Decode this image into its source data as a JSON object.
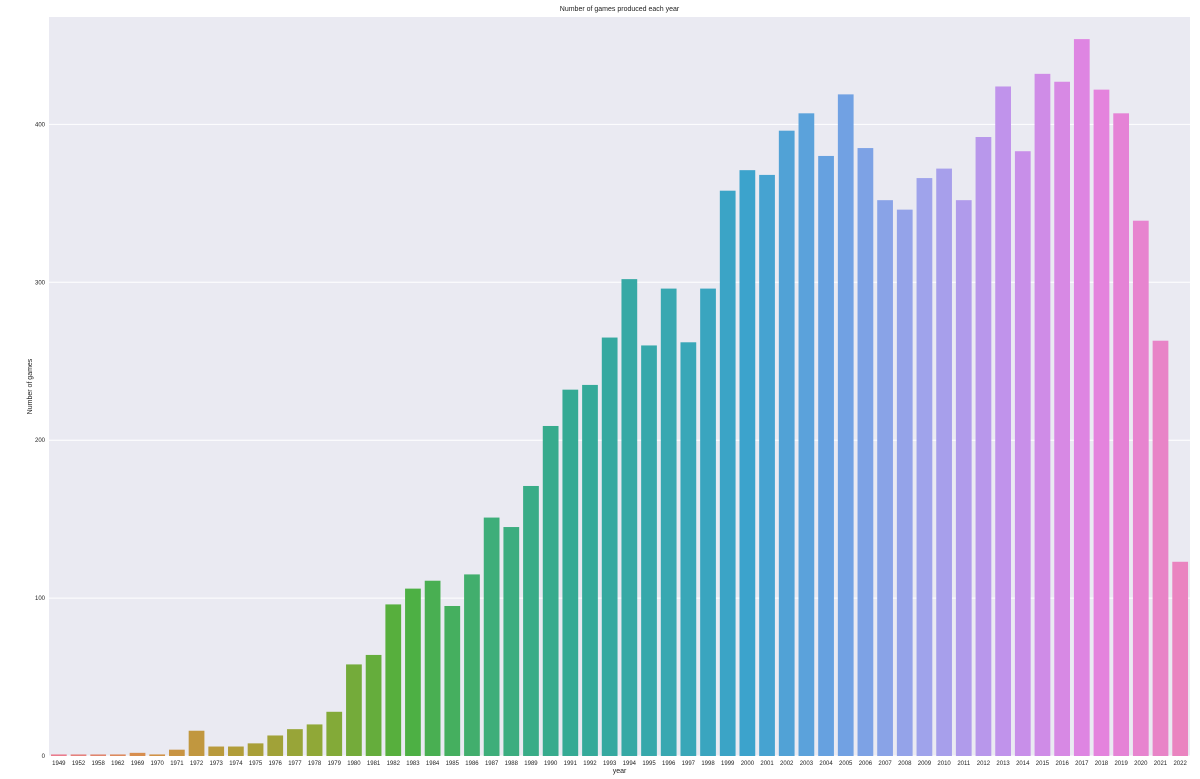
{
  "chart_data": {
    "type": "bar",
    "title": "Number of games produced each year",
    "xlabel": "year",
    "ylabel": "Number of games",
    "categories": [
      "1949",
      "1952",
      "1958",
      "1962",
      "1969",
      "1970",
      "1971",
      "1972",
      "1973",
      "1974",
      "1975",
      "1976",
      "1977",
      "1978",
      "1979",
      "1980",
      "1981",
      "1982",
      "1983",
      "1984",
      "1985",
      "1986",
      "1987",
      "1988",
      "1989",
      "1990",
      "1991",
      "1992",
      "1993",
      "1994",
      "1995",
      "1996",
      "1997",
      "1998",
      "1999",
      "2000",
      "2001",
      "2002",
      "2003",
      "2004",
      "2005",
      "2006",
      "2007",
      "2008",
      "2009",
      "2010",
      "2011",
      "2012",
      "2013",
      "2014",
      "2015",
      "2016",
      "2017",
      "2018",
      "2019",
      "2020",
      "2021",
      "2022"
    ],
    "values": [
      1,
      1,
      1,
      1,
      2,
      1,
      4,
      16,
      6,
      6,
      8,
      13,
      17,
      20,
      28,
      58,
      64,
      96,
      106,
      111,
      95,
      115,
      151,
      145,
      171,
      209,
      232,
      235,
      265,
      302,
      260,
      296,
      262,
      296,
      358,
      371,
      368,
      396,
      407,
      380,
      419,
      385,
      352,
      346,
      366,
      372,
      352,
      392,
      424,
      383,
      432,
      427,
      454,
      422,
      407,
      339,
      263,
      123
    ],
    "ylim": [
      0,
      468
    ],
    "yticks": [
      0,
      100,
      200,
      300,
      400
    ],
    "grid": true,
    "legend": "none",
    "colors": {
      "background": "#eaeaf2",
      "grid": "#ffffff",
      "palette": [
        "#ea7c8d",
        "#d59049",
        "#b39c39",
        "#8fa837",
        "#4fb03e",
        "#3eae79",
        "#34aa96",
        "#38a8af",
        "#3ca3cd",
        "#6ba1e2",
        "#9ea4eb",
        "#c292eb",
        "#e383e0",
        "#ea84c0"
      ]
    }
  }
}
